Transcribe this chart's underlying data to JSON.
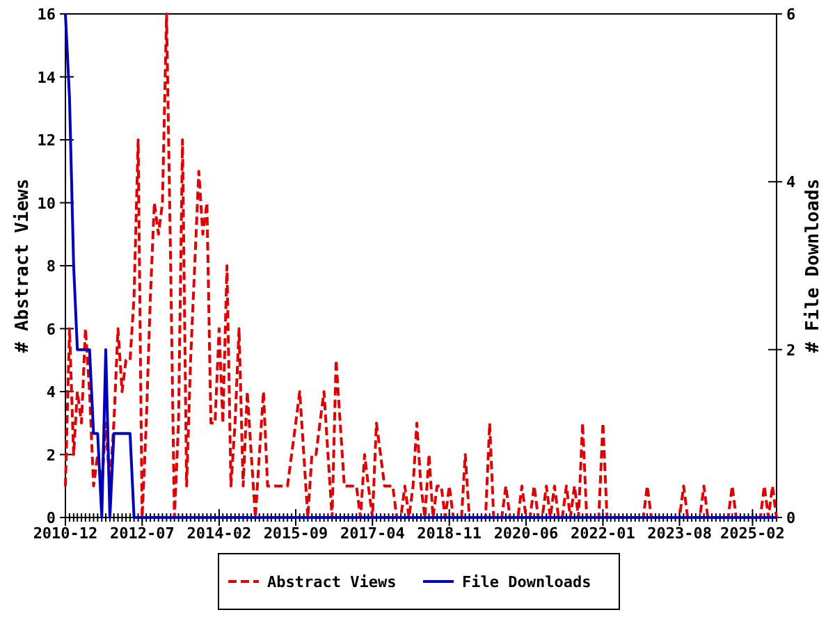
{
  "chart_data": {
    "type": "line",
    "ylabel": "# Abstract Views",
    "y2label": "# File Downloads",
    "x": [
      "2010-12",
      "2011-01",
      "2011-02",
      "2011-03",
      "2011-04",
      "2011-05",
      "2011-06",
      "2011-07",
      "2011-08",
      "2011-09",
      "2011-10",
      "2011-11",
      "2011-12",
      "2012-01",
      "2012-02",
      "2012-03",
      "2012-04",
      "2012-05",
      "2012-06",
      "2012-07",
      "2012-08",
      "2012-09",
      "2012-10",
      "2012-11",
      "2012-12",
      "2013-01",
      "2013-02",
      "2013-03",
      "2013-04",
      "2013-05",
      "2013-06",
      "2013-07",
      "2013-08",
      "2013-09",
      "2013-10",
      "2013-11",
      "2013-12",
      "2014-01",
      "2014-02",
      "2014-03",
      "2014-04",
      "2014-05",
      "2014-06",
      "2014-07",
      "2014-08",
      "2014-09",
      "2014-10",
      "2014-11",
      "2014-12",
      "2015-01",
      "2015-02",
      "2015-03",
      "2015-04",
      "2015-05",
      "2015-06",
      "2015-07",
      "2015-08",
      "2015-09",
      "2015-10",
      "2015-11",
      "2015-12",
      "2016-01",
      "2016-02",
      "2016-03",
      "2016-04",
      "2016-05",
      "2016-06",
      "2016-07",
      "2016-08",
      "2016-09",
      "2016-10",
      "2016-11",
      "2016-12",
      "2017-01",
      "2017-02",
      "2017-03",
      "2017-04",
      "2017-05",
      "2017-06",
      "2017-07",
      "2017-08",
      "2017-09",
      "2017-10",
      "2017-11",
      "2017-12",
      "2018-01",
      "2018-02",
      "2018-03",
      "2018-04",
      "2018-05",
      "2018-06",
      "2018-07",
      "2018-08",
      "2018-09",
      "2018-10",
      "2018-11",
      "2018-12",
      "2019-01",
      "2019-02",
      "2019-03",
      "2019-04",
      "2019-05",
      "2019-06",
      "2019-07",
      "2019-08",
      "2019-09",
      "2019-10",
      "2019-11",
      "2019-12",
      "2020-01",
      "2020-02",
      "2020-03",
      "2020-04",
      "2020-05",
      "2020-06",
      "2020-07",
      "2020-08",
      "2020-09",
      "2020-10",
      "2020-11",
      "2020-12",
      "2021-01",
      "2021-02",
      "2021-03",
      "2021-04",
      "2021-05",
      "2021-06",
      "2021-07",
      "2021-08",
      "2021-09",
      "2021-10",
      "2021-11",
      "2021-12",
      "2022-01",
      "2022-02",
      "2022-03",
      "2022-04",
      "2022-05",
      "2022-06",
      "2022-07",
      "2022-08",
      "2022-09",
      "2022-10",
      "2022-11",
      "2022-12",
      "2023-01",
      "2023-02",
      "2023-03",
      "2023-04",
      "2023-05",
      "2023-06",
      "2023-07",
      "2023-08",
      "2023-09",
      "2023-10",
      "2023-11",
      "2023-12",
      "2024-01",
      "2024-02",
      "2024-03",
      "2024-04",
      "2024-05",
      "2024-06",
      "2024-07",
      "2024-08",
      "2024-09",
      "2024-10",
      "2024-11",
      "2024-12",
      "2025-01",
      "2025-02",
      "2025-03",
      "2025-04",
      "2025-05",
      "2025-06",
      "2025-07",
      "2025-08"
    ],
    "series": [
      {
        "name": "Abstract Views",
        "color": "#dd0000",
        "line_style": "dashed",
        "values": [
          1,
          6,
          2,
          4,
          3,
          6,
          4,
          1,
          2,
          1,
          3,
          1,
          3,
          6,
          4,
          5,
          5,
          7,
          12,
          0,
          3,
          7,
          10,
          9,
          10,
          16,
          8,
          0,
          3,
          12,
          1,
          5,
          8,
          11,
          9,
          10,
          3,
          3,
          6,
          3,
          8,
          1,
          3,
          6,
          1,
          4,
          2,
          0,
          2,
          4,
          1,
          1,
          1,
          1,
          1,
          1,
          2,
          3,
          4,
          2,
          0,
          2,
          2,
          3,
          4,
          2,
          0,
          5,
          3,
          1,
          1,
          1,
          1,
          0,
          2,
          1,
          0,
          3,
          2,
          1,
          1,
          1,
          0,
          0,
          1,
          0,
          1,
          3,
          1,
          0,
          2,
          0,
          1,
          1,
          0,
          1,
          0,
          0,
          0,
          2,
          0,
          0,
          0,
          0,
          0,
          3,
          0,
          0,
          0,
          1,
          0,
          0,
          0,
          1,
          0,
          0,
          1,
          0,
          0,
          1,
          0,
          1,
          0,
          0,
          1,
          0,
          1,
          0,
          3,
          0,
          0,
          0,
          0,
          3,
          0,
          0,
          0,
          0,
          0,
          0,
          0,
          0,
          0,
          0,
          1,
          0,
          0,
          0,
          0,
          0,
          0,
          0,
          0,
          1,
          0,
          0,
          0,
          0,
          1,
          0,
          0,
          0,
          0,
          0,
          0,
          1,
          0,
          0,
          0,
          0,
          0,
          0,
          0,
          1,
          0,
          1,
          0
        ]
      },
      {
        "name": "File Downloads",
        "color": "#0000bb",
        "line_style": "solid",
        "axis": "y2",
        "values": [
          6,
          5,
          3,
          2,
          2,
          2,
          2,
          1,
          1,
          0,
          2,
          0,
          1,
          1,
          1,
          1,
          1,
          0,
          0,
          0,
          0,
          0,
          0,
          0,
          0,
          0,
          0,
          0,
          0,
          0,
          0,
          0,
          0,
          0,
          0,
          0,
          0,
          0,
          0,
          0,
          0,
          0,
          0,
          0,
          0,
          0,
          0,
          0,
          0,
          0,
          0,
          0,
          0,
          0,
          0,
          0,
          0,
          0,
          0,
          0,
          0,
          0,
          0,
          0,
          0,
          0,
          0,
          0,
          0,
          0,
          0,
          0,
          0,
          0,
          0,
          0,
          0,
          0,
          0,
          0,
          0,
          0,
          0,
          0,
          0,
          0,
          0,
          0,
          0,
          0,
          0,
          0,
          0,
          0,
          0,
          0,
          0,
          0,
          0,
          0,
          0,
          0,
          0,
          0,
          0,
          0,
          0,
          0,
          0,
          0,
          0,
          0,
          0,
          0,
          0,
          0,
          0,
          0,
          0,
          0,
          0,
          0,
          0,
          0,
          0,
          0,
          0,
          0,
          0,
          0,
          0,
          0,
          0,
          0,
          0,
          0,
          0,
          0,
          0,
          0,
          0,
          0,
          0,
          0,
          0,
          0,
          0,
          0,
          0,
          0,
          0,
          0,
          0,
          0,
          0,
          0,
          0,
          0,
          0,
          0,
          0,
          0,
          0,
          0,
          0,
          0,
          0,
          0,
          0,
          0,
          0,
          0,
          0,
          0,
          0,
          0,
          0
        ]
      }
    ],
    "xlim": [
      "2010-12",
      "2025-08"
    ],
    "xticks": [
      "2010-12",
      "2012-07",
      "2014-02",
      "2015-09",
      "2017-04",
      "2018-11",
      "2020-06",
      "2022-01",
      "2023-08",
      "2025-02"
    ],
    "ylim": [
      0,
      16
    ],
    "yticks": [
      0,
      2,
      4,
      6,
      8,
      10,
      12,
      14,
      16
    ],
    "y2lim": [
      0,
      6
    ],
    "y2ticks": [
      0,
      2,
      4,
      6
    ],
    "grid": false,
    "legend": "bottom",
    "marker": "none"
  }
}
